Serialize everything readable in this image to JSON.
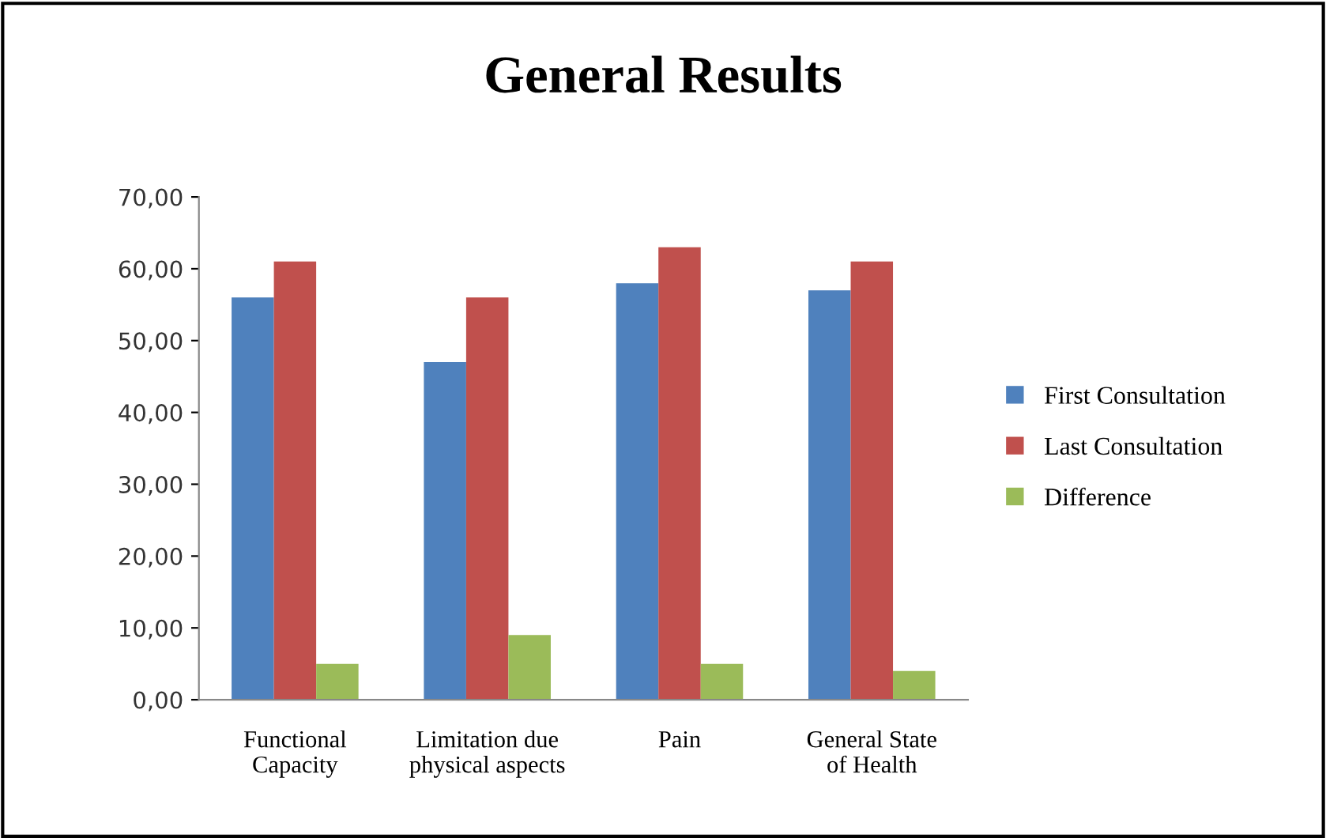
{
  "chart_data": {
    "type": "bar",
    "title": "General Results",
    "categories": [
      "Functional\nCapacity",
      "Limitation due\nphysical aspects",
      "Pain",
      "General State\nof Health"
    ],
    "series": [
      {
        "name": "First Consultation",
        "color": "#4f81bd",
        "values": [
          56,
          47,
          58,
          57
        ]
      },
      {
        "name": "Last Consultation",
        "color": "#c0504d",
        "values": [
          61,
          56,
          63,
          61
        ]
      },
      {
        "name": "Difference",
        "color": "#9bbb59",
        "values": [
          5,
          9,
          5,
          4
        ]
      }
    ],
    "ylim": [
      0,
      70
    ],
    "yticks": [
      {
        "value": 0,
        "label": "0,00"
      },
      {
        "value": 10,
        "label": "10,00"
      },
      {
        "value": 20,
        "label": "20,00"
      },
      {
        "value": 30,
        "label": "30,00"
      },
      {
        "value": 40,
        "label": "40,00"
      },
      {
        "value": 50,
        "label": "50,00"
      },
      {
        "value": 60,
        "label": "60,00"
      },
      {
        "value": 70,
        "label": "70,00"
      }
    ],
    "grid": false,
    "legend": "right"
  }
}
